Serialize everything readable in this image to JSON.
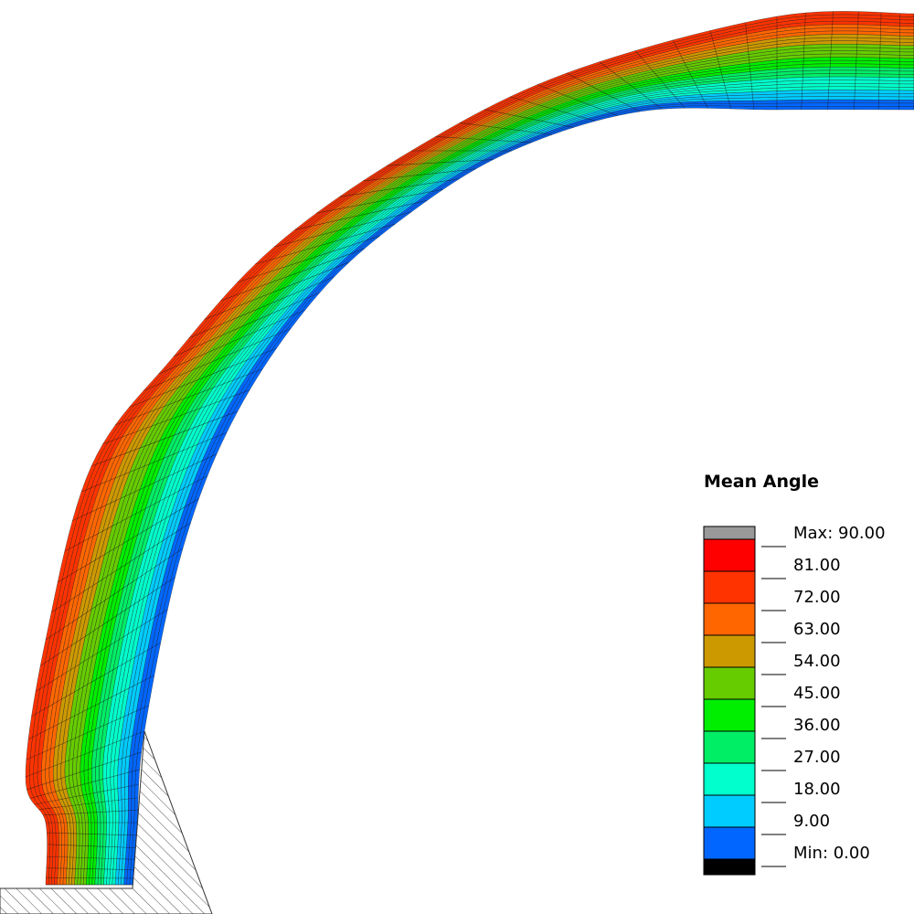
{
  "legend": {
    "title": "Mean Angle",
    "labels": [
      "Max: 90.00",
      "81.00",
      "72.00",
      "63.00",
      "54.00",
      "45.00",
      "36.00",
      "27.00",
      "18.00",
      "9.00",
      "Min: 0.00"
    ],
    "colors": [
      "#999999",
      "#ff0000",
      "#ff3300",
      "#ff6600",
      "#cc9900",
      "#66cc00",
      "#00ee00",
      "#00ee66",
      "#00ffcc",
      "#00ccff",
      "#0066ff",
      "#000000"
    ]
  }
}
